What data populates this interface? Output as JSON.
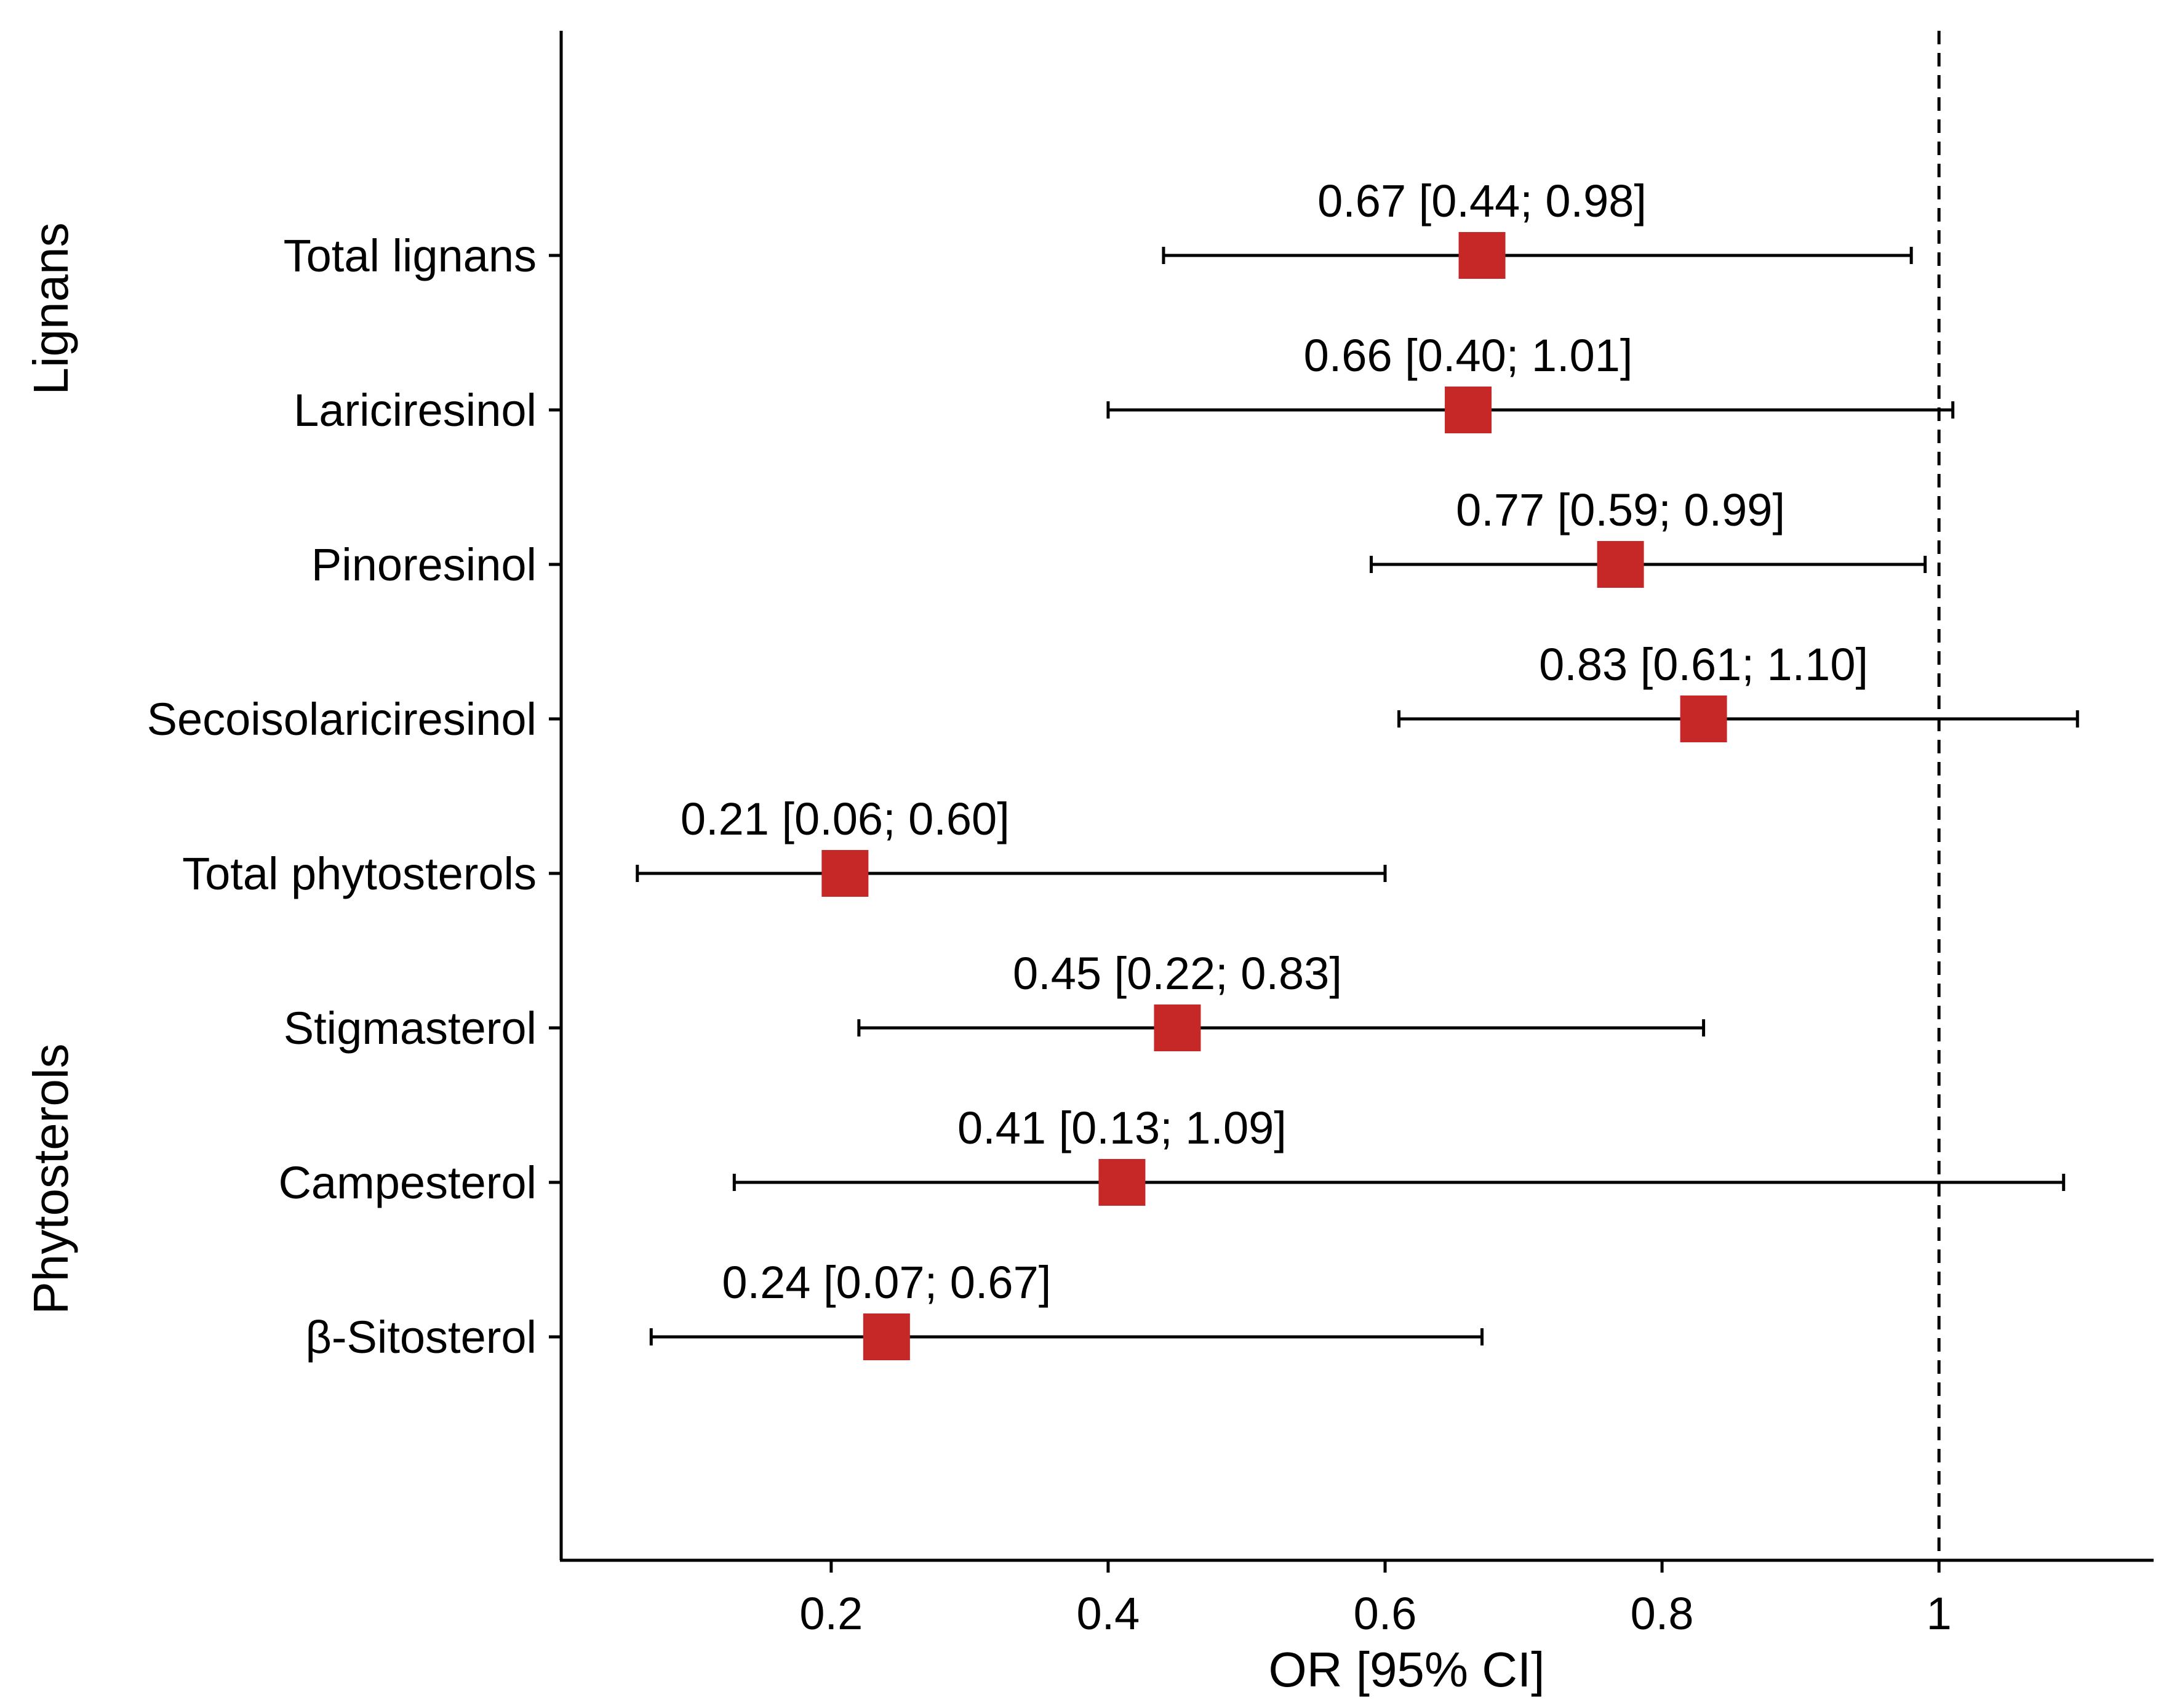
{
  "chart_data": {
    "type": "forest",
    "xlabel": "OR [95% CI]",
    "x_ticks": [
      0.2,
      0.4,
      0.6,
      0.8,
      1
    ],
    "x_tick_labels": [
      "0.2",
      "0.4",
      "0.6",
      "0.8",
      "1"
    ],
    "xlim": [
      0.005,
      1.155
    ],
    "reference_line": 1,
    "marker_color": "#c62828",
    "groups": [
      {
        "label": "Lignans",
        "rows": [
          0,
          1,
          2,
          3
        ]
      },
      {
        "label": "Phytosterols",
        "rows": [
          4,
          5,
          6,
          7
        ]
      }
    ],
    "rows": [
      {
        "name": "Total lignans",
        "or": 0.67,
        "low": 0.44,
        "high": 0.98,
        "label": "0.67 [0.44; 0.98]"
      },
      {
        "name": "Lariciresinol",
        "or": 0.66,
        "low": 0.4,
        "high": 1.01,
        "label": "0.66 [0.40; 1.01]"
      },
      {
        "name": "Pinoresinol",
        "or": 0.77,
        "low": 0.59,
        "high": 0.99,
        "label": "0.77 [0.59; 0.99]"
      },
      {
        "name": "Secoisolariciresinol",
        "or": 0.83,
        "low": 0.61,
        "high": 1.1,
        "label": "0.83 [0.61; 1.10]"
      },
      {
        "name": "Total phytosterols",
        "or": 0.21,
        "low": 0.06,
        "high": 0.6,
        "label": "0.21 [0.06; 0.60]"
      },
      {
        "name": "Stigmasterol",
        "or": 0.45,
        "low": 0.22,
        "high": 0.83,
        "label": "0.45 [0.22; 0.83]"
      },
      {
        "name": "Campesterol",
        "or": 0.41,
        "low": 0.13,
        "high": 1.09,
        "label": "0.41 [0.13; 1.09]"
      },
      {
        "name": "β-Sitosterol",
        "or": 0.24,
        "low": 0.07,
        "high": 0.67,
        "label": "0.24 [0.07; 0.67]"
      }
    ]
  }
}
